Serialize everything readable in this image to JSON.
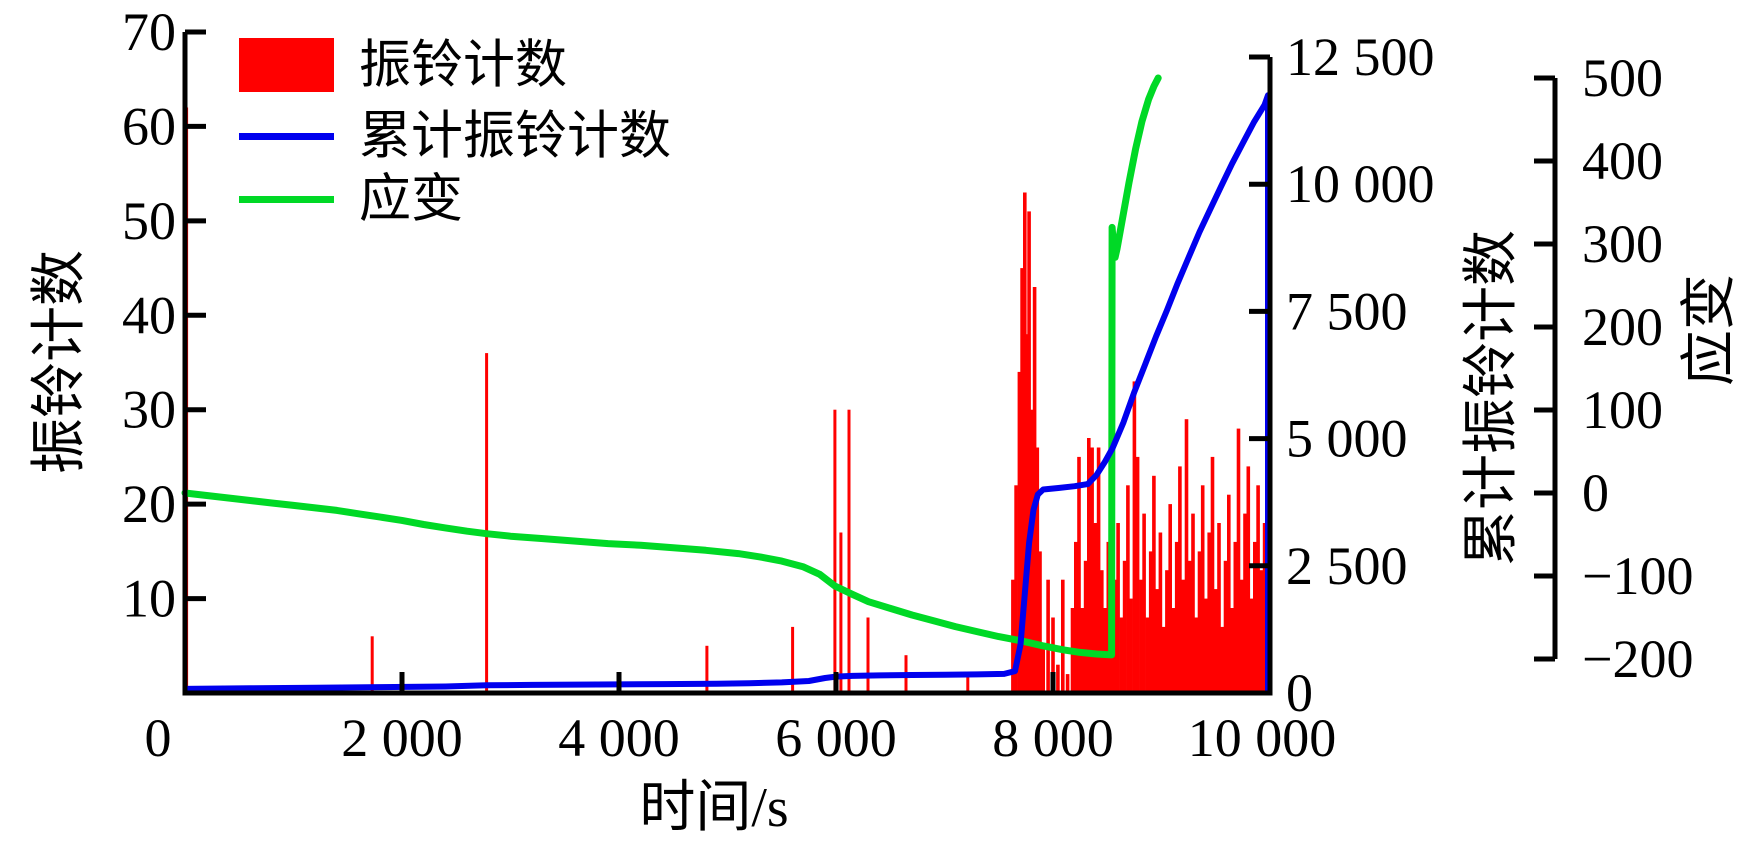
{
  "chart_data": {
    "type": "combo",
    "title": "",
    "x_axis": {
      "title": "时间/s",
      "min": 0,
      "max": 10000,
      "ticks": [
        {
          "v": 0,
          "label": "0"
        },
        {
          "v": 2000,
          "label": "2 000"
        },
        {
          "v": 4000,
          "label": "4 000"
        },
        {
          "v": 6000,
          "label": "6 000"
        },
        {
          "v": 8000,
          "label": "8 000"
        },
        {
          "v": 10000,
          "label": "10 000"
        }
      ]
    },
    "y_left": {
      "title": "振铃计数",
      "min": 0,
      "max": 70,
      "ticks": [
        {
          "v": 10,
          "label": "10"
        },
        {
          "v": 20,
          "label": "20"
        },
        {
          "v": 30,
          "label": "30"
        },
        {
          "v": 40,
          "label": "40"
        },
        {
          "v": 50,
          "label": "50"
        },
        {
          "v": 60,
          "label": "60"
        },
        {
          "v": 70,
          "label": "70"
        }
      ]
    },
    "y_right_cumulative": {
      "title": "累计振铃计数",
      "min": 0,
      "max": 12500,
      "ticks": [
        {
          "v": 0,
          "label": "0"
        },
        {
          "v": 2500,
          "label": "2 500"
        },
        {
          "v": 5000,
          "label": "5 000"
        },
        {
          "v": 7500,
          "label": "7 500"
        },
        {
          "v": 10000,
          "label": "10 000"
        },
        {
          "v": 12500,
          "label": "12 500"
        }
      ]
    },
    "y_right_strain": {
      "title": "应变",
      "min": -200,
      "max": 500,
      "ticks": [
        {
          "v": 500,
          "label": "500"
        },
        {
          "v": 400,
          "label": "400"
        },
        {
          "v": 300,
          "label": "300"
        },
        {
          "v": 200,
          "label": "200"
        },
        {
          "v": 100,
          "label": "100"
        },
        {
          "v": 0,
          "label": "0"
        },
        {
          "v": -100,
          "label": "−100"
        },
        {
          "v": -200,
          "label": "−200"
        }
      ]
    },
    "legend": {
      "items": [
        {
          "label": "振铃计数",
          "swatch": "bar",
          "color": "#FF0000"
        },
        {
          "label": "累计振铃计数",
          "swatch": "line",
          "color": "#0000EE"
        },
        {
          "label": "应变",
          "swatch": "line",
          "color": "#00D926"
        }
      ]
    },
    "colors": {
      "bars": "#FF0000",
      "cumulative": "#0000EE",
      "strain": "#00D926",
      "axis": "#000000"
    },
    "series": {
      "ring_count_bars": [
        [
          15,
          62
        ],
        [
          1725,
          6
        ],
        [
          2780,
          36
        ],
        [
          4810,
          5
        ],
        [
          5600,
          7
        ],
        [
          5990,
          30
        ],
        [
          6045,
          17
        ],
        [
          6120,
          30
        ],
        [
          6295,
          8
        ],
        [
          6645,
          4
        ],
        [
          7215,
          2
        ],
        [
          7630,
          12
        ],
        [
          7660,
          22
        ],
        [
          7690,
          34
        ],
        [
          7715,
          45
        ],
        [
          7740,
          53
        ],
        [
          7760,
          38
        ],
        [
          7780,
          51
        ],
        [
          7805,
          30
        ],
        [
          7830,
          43
        ],
        [
          7855,
          26
        ],
        [
          7880,
          15
        ],
        [
          7910,
          5
        ],
        [
          7955,
          12
        ],
        [
          8000,
          8
        ],
        [
          8045,
          3
        ],
        [
          8090,
          12
        ],
        [
          8135,
          2
        ],
        [
          8180,
          9
        ],
        [
          8210,
          16
        ],
        [
          8240,
          25
        ],
        [
          8270,
          9
        ],
        [
          8300,
          14
        ],
        [
          8330,
          27
        ],
        [
          8360,
          26
        ],
        [
          8390,
          18
        ],
        [
          8420,
          26
        ],
        [
          8450,
          13
        ],
        [
          8480,
          9
        ],
        [
          8510,
          16
        ],
        [
          8540,
          21
        ],
        [
          8570,
          12
        ],
        [
          8600,
          18
        ],
        [
          8630,
          8
        ],
        [
          8660,
          14
        ],
        [
          8690,
          22
        ],
        [
          8720,
          10
        ],
        [
          8750,
          33
        ],
        [
          8780,
          25
        ],
        [
          8810,
          12
        ],
        [
          8840,
          19
        ],
        [
          8870,
          8
        ],
        [
          8900,
          15
        ],
        [
          8930,
          23
        ],
        [
          8960,
          11
        ],
        [
          8990,
          17
        ],
        [
          9020,
          7
        ],
        [
          9050,
          13
        ],
        [
          9080,
          20
        ],
        [
          9110,
          9
        ],
        [
          9140,
          16
        ],
        [
          9170,
          24
        ],
        [
          9200,
          12
        ],
        [
          9230,
          29
        ],
        [
          9260,
          14
        ],
        [
          9290,
          19
        ],
        [
          9320,
          8
        ],
        [
          9350,
          15
        ],
        [
          9380,
          22
        ],
        [
          9410,
          10
        ],
        [
          9440,
          17
        ],
        [
          9470,
          25
        ],
        [
          9500,
          11
        ],
        [
          9530,
          18
        ],
        [
          9560,
          7
        ],
        [
          9590,
          14
        ],
        [
          9620,
          21
        ],
        [
          9650,
          9
        ],
        [
          9680,
          16
        ],
        [
          9710,
          28
        ],
        [
          9740,
          12
        ],
        [
          9770,
          19
        ],
        [
          9800,
          24
        ],
        [
          9830,
          10
        ],
        [
          9860,
          16
        ],
        [
          9890,
          22
        ],
        [
          9920,
          13
        ],
        [
          9950,
          18
        ],
        [
          9980,
          15
        ]
      ],
      "cumulative_ring_counts": [
        [
          0,
          80
        ],
        [
          600,
          92
        ],
        [
          1200,
          104
        ],
        [
          1800,
          116
        ],
        [
          2400,
          128
        ],
        [
          2780,
          152
        ],
        [
          3200,
          160
        ],
        [
          3800,
          168
        ],
        [
          4400,
          175
        ],
        [
          4900,
          183
        ],
        [
          5200,
          192
        ],
        [
          5500,
          208
        ],
        [
          5750,
          235
        ],
        [
          5900,
          295
        ],
        [
          6000,
          322
        ],
        [
          6150,
          336
        ],
        [
          6400,
          346
        ],
        [
          6700,
          353
        ],
        [
          7000,
          359
        ],
        [
          7300,
          366
        ],
        [
          7550,
          376
        ],
        [
          7650,
          430
        ],
        [
          7700,
          950
        ],
        [
          7740,
          1950
        ],
        [
          7780,
          2950
        ],
        [
          7820,
          3600
        ],
        [
          7860,
          3900
        ],
        [
          7910,
          4000
        ],
        [
          8050,
          4030
        ],
        [
          8200,
          4065
        ],
        [
          8320,
          4105
        ],
        [
          8400,
          4280
        ],
        [
          8480,
          4550
        ],
        [
          8550,
          4820
        ],
        [
          8650,
          5320
        ],
        [
          8750,
          5920
        ],
        [
          8850,
          6460
        ],
        [
          8950,
          7010
        ],
        [
          9050,
          7520
        ],
        [
          9150,
          8060
        ],
        [
          9250,
          8560
        ],
        [
          9350,
          9060
        ],
        [
          9450,
          9510
        ],
        [
          9550,
          9960
        ],
        [
          9650,
          10400
        ],
        [
          9750,
          10810
        ],
        [
          9850,
          11210
        ],
        [
          9950,
          11560
        ],
        [
          10000,
          11750
        ],
        [
          10000,
          0
        ]
      ],
      "strain": [
        [
          0,
          0
        ],
        [
          200,
          -3
        ],
        [
          400,
          -6
        ],
        [
          600,
          -9
        ],
        [
          800,
          -12
        ],
        [
          1000,
          -15
        ],
        [
          1200,
          -18
        ],
        [
          1400,
          -21
        ],
        [
          1600,
          -25
        ],
        [
          1800,
          -29
        ],
        [
          2000,
          -33
        ],
        [
          2200,
          -38
        ],
        [
          2400,
          -42
        ],
        [
          2600,
          -46
        ],
        [
          2780,
          -49
        ],
        [
          3000,
          -52
        ],
        [
          3300,
          -55
        ],
        [
          3600,
          -58
        ],
        [
          3900,
          -61
        ],
        [
          4200,
          -63
        ],
        [
          4500,
          -66
        ],
        [
          4800,
          -69
        ],
        [
          5100,
          -73
        ],
        [
          5300,
          -77
        ],
        [
          5500,
          -82
        ],
        [
          5700,
          -89
        ],
        [
          5850,
          -98
        ],
        [
          5990,
          -112
        ],
        [
          6150,
          -122
        ],
        [
          6300,
          -131
        ],
        [
          6500,
          -139
        ],
        [
          6700,
          -147
        ],
        [
          6900,
          -154
        ],
        [
          7100,
          -161
        ],
        [
          7300,
          -167
        ],
        [
          7500,
          -173
        ],
        [
          7700,
          -178
        ],
        [
          7900,
          -184
        ],
        [
          8100,
          -189
        ],
        [
          8250,
          -192
        ],
        [
          8400,
          -194
        ],
        [
          8540,
          -195
        ],
        [
          8545,
          320
        ],
        [
          8558,
          298
        ],
        [
          8572,
          284
        ],
        [
          8590,
          294
        ],
        [
          8640,
          330
        ],
        [
          8700,
          374
        ],
        [
          8760,
          414
        ],
        [
          8820,
          448
        ],
        [
          8880,
          474
        ],
        [
          8930,
          490
        ],
        [
          8970,
          500
        ]
      ]
    }
  }
}
